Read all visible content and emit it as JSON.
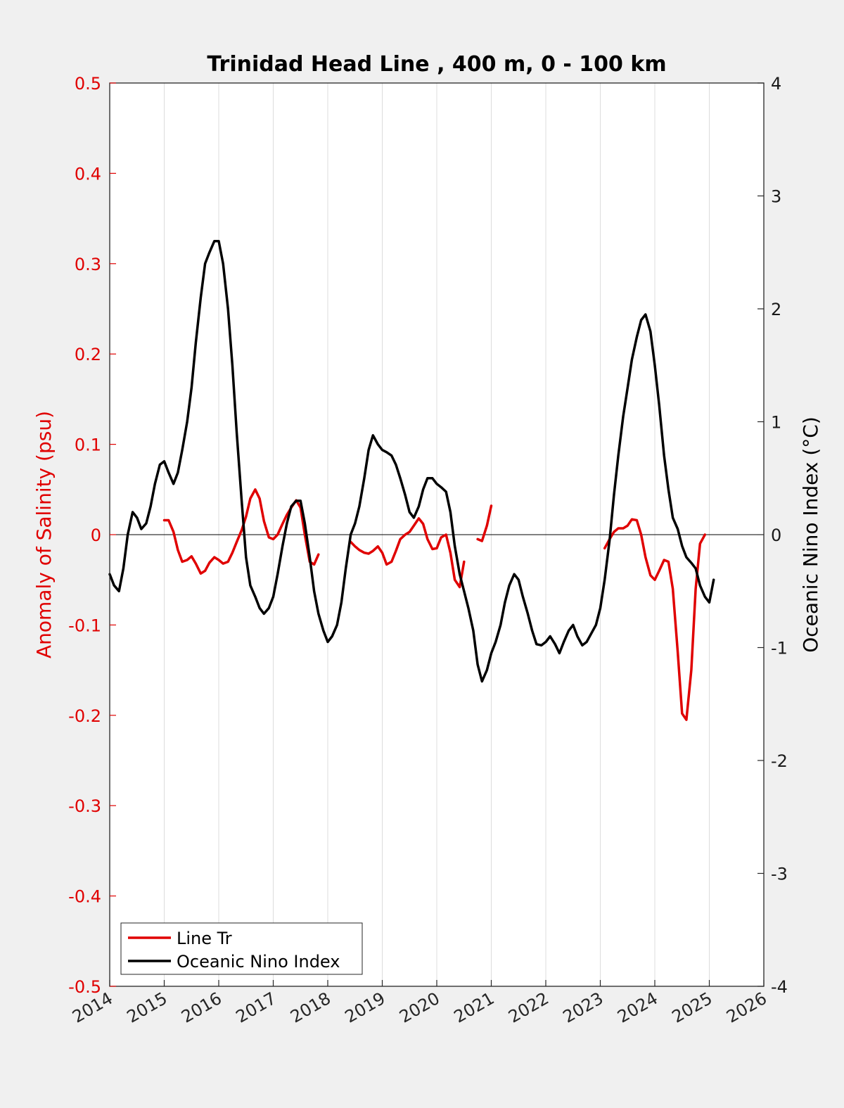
{
  "chart_data": {
    "type": "line",
    "title": "Trinidad Head Line , 400 m, 0 - 100 km",
    "xlabel": "",
    "ylabel_left": "Anomaly of Salinity (psu)",
    "ylabel_right": "Oceanic Nino Index (°C)",
    "xlim": [
      2014,
      2026
    ],
    "ylim_left": [
      -0.5,
      0.5
    ],
    "ylim_right": [
      -4,
      4
    ],
    "x_ticks": [
      "2014",
      "2015",
      "2016",
      "2017",
      "2018",
      "2019",
      "2020",
      "2021",
      "2022",
      "2023",
      "2024",
      "2025",
      "2026"
    ],
    "y_ticks_left": [
      "0.5",
      "0.4",
      "0.3",
      "0.2",
      "0.1",
      "0",
      "-0.1",
      "-0.2",
      "-0.3",
      "-0.4",
      "-0.5"
    ],
    "y_ticks_right": [
      "4",
      "3",
      "2",
      "1",
      "0",
      "-1",
      "-2",
      "-3",
      "-4"
    ],
    "grid": "vertical",
    "legend_position": "bottom-left",
    "colors": {
      "line_tr": "#e00000",
      "oni": "#000000",
      "left_axis": "#e00000"
    },
    "series": [
      {
        "name": "Line Tr",
        "axis": "left",
        "segments": [
          [
            [
              2015.0,
              0.016
            ],
            [
              2015.08,
              0.016
            ],
            [
              2015.17,
              0.003
            ],
            [
              2015.25,
              -0.017
            ],
            [
              2015.33,
              -0.03
            ],
            [
              2015.42,
              -0.028
            ],
            [
              2015.5,
              -0.024
            ],
            [
              2015.58,
              -0.032
            ],
            [
              2015.67,
              -0.043
            ],
            [
              2015.75,
              -0.04
            ],
            [
              2015.83,
              -0.031
            ],
            [
              2015.92,
              -0.025
            ],
            [
              2016.0,
              -0.028
            ],
            [
              2016.08,
              -0.032
            ],
            [
              2016.17,
              -0.03
            ],
            [
              2016.25,
              -0.02
            ],
            [
              2016.33,
              -0.008
            ],
            [
              2016.42,
              0.005
            ],
            [
              2016.5,
              0.02
            ],
            [
              2016.58,
              0.04
            ],
            [
              2016.67,
              0.05
            ],
            [
              2016.75,
              0.04
            ],
            [
              2016.83,
              0.015
            ],
            [
              2016.92,
              -0.003
            ],
            [
              2017.0,
              -0.005
            ],
            [
              2017.08,
              0.0
            ],
            [
              2017.17,
              0.012
            ],
            [
              2017.25,
              0.022
            ],
            [
              2017.33,
              0.03
            ],
            [
              2017.42,
              0.038
            ],
            [
              2017.5,
              0.03
            ],
            [
              2017.58,
              0.0
            ],
            [
              2017.67,
              -0.03
            ],
            [
              2017.75,
              -0.033
            ],
            [
              2017.83,
              -0.022
            ]
          ],
          [
            [
              2018.42,
              -0.008
            ],
            [
              2018.5,
              -0.013
            ],
            [
              2018.58,
              -0.017
            ],
            [
              2018.67,
              -0.02
            ],
            [
              2018.75,
              -0.021
            ],
            [
              2018.83,
              -0.018
            ],
            [
              2018.92,
              -0.013
            ],
            [
              2019.0,
              -0.02
            ],
            [
              2019.08,
              -0.033
            ],
            [
              2019.17,
              -0.03
            ],
            [
              2019.25,
              -0.018
            ],
            [
              2019.33,
              -0.005
            ],
            [
              2019.42,
              0.0
            ],
            [
              2019.5,
              0.003
            ],
            [
              2019.58,
              0.01
            ],
            [
              2019.67,
              0.018
            ],
            [
              2019.75,
              0.012
            ],
            [
              2019.83,
              -0.005
            ],
            [
              2019.92,
              -0.016
            ],
            [
              2020.0,
              -0.015
            ],
            [
              2020.08,
              -0.003
            ],
            [
              2020.17,
              0.0
            ],
            [
              2020.25,
              -0.02
            ],
            [
              2020.33,
              -0.05
            ],
            [
              2020.42,
              -0.058
            ],
            [
              2020.5,
              -0.03
            ]
          ],
          [
            [
              2020.75,
              -0.005
            ],
            [
              2020.83,
              -0.007
            ],
            [
              2020.92,
              0.01
            ],
            [
              2021.0,
              0.032
            ]
          ],
          [
            [
              2023.08,
              -0.015
            ],
            [
              2023.17,
              -0.005
            ],
            [
              2023.25,
              0.003
            ],
            [
              2023.33,
              0.007
            ],
            [
              2023.42,
              0.007
            ],
            [
              2023.5,
              0.01
            ],
            [
              2023.58,
              0.017
            ],
            [
              2023.67,
              0.016
            ],
            [
              2023.75,
              0.0
            ],
            [
              2023.83,
              -0.025
            ],
            [
              2023.92,
              -0.045
            ],
            [
              2024.0,
              -0.05
            ],
            [
              2024.08,
              -0.04
            ],
            [
              2024.17,
              -0.028
            ],
            [
              2024.25,
              -0.03
            ],
            [
              2024.33,
              -0.06
            ],
            [
              2024.42,
              -0.13
            ],
            [
              2024.5,
              -0.198
            ],
            [
              2024.58,
              -0.205
            ],
            [
              2024.67,
              -0.15
            ],
            [
              2024.75,
              -0.06
            ],
            [
              2024.83,
              -0.01
            ],
            [
              2024.92,
              0.0
            ]
          ]
        ]
      },
      {
        "name": "Oceanic Nino Index",
        "axis": "right",
        "segments": [
          [
            [
              2014.0,
              -0.35
            ],
            [
              2014.08,
              -0.45
            ],
            [
              2014.17,
              -0.5
            ],
            [
              2014.25,
              -0.3
            ],
            [
              2014.33,
              0.0
            ],
            [
              2014.42,
              0.2
            ],
            [
              2014.5,
              0.15
            ],
            [
              2014.58,
              0.05
            ],
            [
              2014.67,
              0.1
            ],
            [
              2014.75,
              0.25
            ],
            [
              2014.83,
              0.45
            ],
            [
              2014.92,
              0.62
            ],
            [
              2015.0,
              0.65
            ],
            [
              2015.08,
              0.55
            ],
            [
              2015.17,
              0.45
            ],
            [
              2015.25,
              0.55
            ],
            [
              2015.33,
              0.75
            ],
            [
              2015.42,
              1.0
            ],
            [
              2015.5,
              1.3
            ],
            [
              2015.58,
              1.7
            ],
            [
              2015.67,
              2.1
            ],
            [
              2015.75,
              2.4
            ],
            [
              2015.83,
              2.5
            ],
            [
              2015.92,
              2.6
            ],
            [
              2016.0,
              2.6
            ],
            [
              2016.08,
              2.4
            ],
            [
              2016.17,
              2.0
            ],
            [
              2016.25,
              1.5
            ],
            [
              2016.33,
              0.9
            ],
            [
              2016.42,
              0.3
            ],
            [
              2016.5,
              -0.2
            ],
            [
              2016.58,
              -0.45
            ],
            [
              2016.67,
              -0.55
            ],
            [
              2016.75,
              -0.65
            ],
            [
              2016.83,
              -0.7
            ],
            [
              2016.92,
              -0.65
            ],
            [
              2017.0,
              -0.55
            ],
            [
              2017.08,
              -0.35
            ],
            [
              2017.17,
              -0.1
            ],
            [
              2017.25,
              0.1
            ],
            [
              2017.33,
              0.25
            ],
            [
              2017.42,
              0.3
            ],
            [
              2017.5,
              0.3
            ],
            [
              2017.58,
              0.1
            ],
            [
              2017.67,
              -0.2
            ],
            [
              2017.75,
              -0.5
            ],
            [
              2017.83,
              -0.7
            ],
            [
              2017.92,
              -0.85
            ],
            [
              2018.0,
              -0.95
            ],
            [
              2018.08,
              -0.9
            ],
            [
              2018.17,
              -0.8
            ],
            [
              2018.25,
              -0.6
            ],
            [
              2018.33,
              -0.3
            ],
            [
              2018.42,
              0.0
            ],
            [
              2018.5,
              0.1
            ],
            [
              2018.58,
              0.25
            ],
            [
              2018.67,
              0.5
            ],
            [
              2018.75,
              0.75
            ],
            [
              2018.83,
              0.88
            ],
            [
              2018.92,
              0.8
            ],
            [
              2019.0,
              0.75
            ],
            [
              2019.08,
              0.73
            ],
            [
              2019.17,
              0.7
            ],
            [
              2019.25,
              0.62
            ],
            [
              2019.33,
              0.5
            ],
            [
              2019.42,
              0.35
            ],
            [
              2019.5,
              0.2
            ],
            [
              2019.58,
              0.15
            ],
            [
              2019.67,
              0.25
            ],
            [
              2019.75,
              0.4
            ],
            [
              2019.83,
              0.5
            ],
            [
              2019.92,
              0.5
            ],
            [
              2020.0,
              0.45
            ],
            [
              2020.08,
              0.42
            ],
            [
              2020.17,
              0.38
            ],
            [
              2020.25,
              0.2
            ],
            [
              2020.33,
              -0.1
            ],
            [
              2020.42,
              -0.35
            ],
            [
              2020.5,
              -0.5
            ],
            [
              2020.58,
              -0.65
            ],
            [
              2020.67,
              -0.85
            ],
            [
              2020.75,
              -1.15
            ],
            [
              2020.83,
              -1.3
            ],
            [
              2020.92,
              -1.2
            ],
            [
              2021.0,
              -1.05
            ],
            [
              2021.08,
              -0.95
            ],
            [
              2021.17,
              -0.8
            ],
            [
              2021.25,
              -0.6
            ],
            [
              2021.33,
              -0.45
            ],
            [
              2021.42,
              -0.35
            ],
            [
              2021.5,
              -0.4
            ],
            [
              2021.58,
              -0.55
            ],
            [
              2021.67,
              -0.7
            ],
            [
              2021.75,
              -0.85
            ],
            [
              2021.83,
              -0.97
            ],
            [
              2021.92,
              -0.98
            ],
            [
              2022.0,
              -0.95
            ],
            [
              2022.08,
              -0.9
            ],
            [
              2022.17,
              -0.97
            ],
            [
              2022.25,
              -1.05
            ],
            [
              2022.33,
              -0.95
            ],
            [
              2022.42,
              -0.85
            ],
            [
              2022.5,
              -0.8
            ],
            [
              2022.58,
              -0.9
            ],
            [
              2022.67,
              -0.98
            ],
            [
              2022.75,
              -0.95
            ],
            [
              2022.83,
              -0.88
            ],
            [
              2022.92,
              -0.8
            ],
            [
              2023.0,
              -0.65
            ],
            [
              2023.08,
              -0.4
            ],
            [
              2023.17,
              -0.05
            ],
            [
              2023.25,
              0.35
            ],
            [
              2023.33,
              0.7
            ],
            [
              2023.42,
              1.05
            ],
            [
              2023.5,
              1.3
            ],
            [
              2023.58,
              1.55
            ],
            [
              2023.67,
              1.75
            ],
            [
              2023.75,
              1.9
            ],
            [
              2023.83,
              1.95
            ],
            [
              2023.92,
              1.8
            ],
            [
              2024.0,
              1.5
            ],
            [
              2024.08,
              1.15
            ],
            [
              2024.17,
              0.7
            ],
            [
              2024.25,
              0.4
            ],
            [
              2024.33,
              0.15
            ],
            [
              2024.42,
              0.05
            ],
            [
              2024.5,
              -0.1
            ],
            [
              2024.58,
              -0.2
            ],
            [
              2024.67,
              -0.25
            ],
            [
              2024.75,
              -0.3
            ],
            [
              2024.83,
              -0.45
            ],
            [
              2024.92,
              -0.55
            ],
            [
              2025.0,
              -0.6
            ],
            [
              2025.08,
              -0.4
            ]
          ]
        ]
      }
    ]
  }
}
